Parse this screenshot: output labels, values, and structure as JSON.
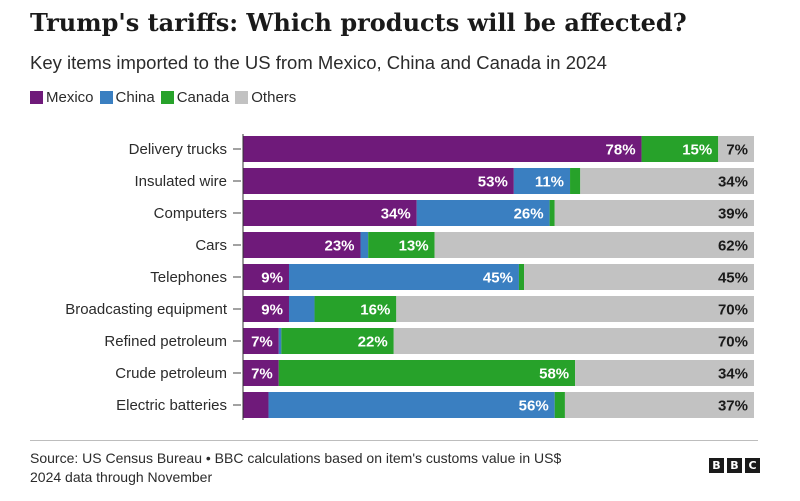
{
  "title": "Trump's tariffs: Which products will be affected?",
  "subtitle": "Key items imported to the US from Mexico, China and Canada in 2024",
  "legend": [
    {
      "label": "Mexico",
      "color": "#6f1a7a"
    },
    {
      "label": "China",
      "color": "#3a7fc1"
    },
    {
      "label": "Canada",
      "color": "#27a22a"
    },
    {
      "label": "Others",
      "color": "#c2c2c2"
    }
  ],
  "chart_data": {
    "type": "bar",
    "orientation": "horizontal",
    "stacked": true,
    "percent_scale": 100,
    "categories": [
      "Delivery trucks",
      "Insulated wire",
      "Computers",
      "Cars",
      "Telephones",
      "Broadcasting equipment",
      "Refined petroleum",
      "Crude petroleum",
      "Electric batteries"
    ],
    "series": [
      {
        "name": "Mexico",
        "color": "#6f1a7a",
        "values": [
          78,
          53,
          34,
          23,
          9,
          9,
          7,
          7,
          5
        ]
      },
      {
        "name": "China",
        "color": "#3a7fc1",
        "values": [
          0,
          11,
          26,
          1.5,
          45,
          5,
          0.5,
          0,
          56
        ]
      },
      {
        "name": "Canada",
        "color": "#27a22a",
        "values": [
          15,
          2,
          1,
          13,
          1,
          16,
          22,
          58,
          2
        ]
      },
      {
        "name": "Others",
        "color": "#c2c2c2",
        "values": [
          7,
          34,
          39,
          62,
          45,
          70,
          70,
          34,
          37
        ]
      }
    ],
    "labels": [
      [
        "78%",
        "",
        "15%",
        "7%"
      ],
      [
        "53%",
        "11%",
        "",
        "34%"
      ],
      [
        "34%",
        "26%",
        "",
        "39%"
      ],
      [
        "23%",
        "",
        "13%",
        "62%"
      ],
      [
        "9%",
        "45%",
        "",
        "45%"
      ],
      [
        "9%",
        "",
        "16%",
        "70%"
      ],
      [
        "7%",
        "",
        "22%",
        "70%"
      ],
      [
        "7%",
        "",
        "58%",
        "34%"
      ],
      [
        "",
        "56%",
        "",
        "37%"
      ]
    ]
  },
  "footer": {
    "source_line1": "Source: US Census Bureau • BBC calculations based on item's customs value in US$",
    "source_line2": "2024 data through November"
  },
  "logo": [
    "B",
    "B",
    "C"
  ]
}
